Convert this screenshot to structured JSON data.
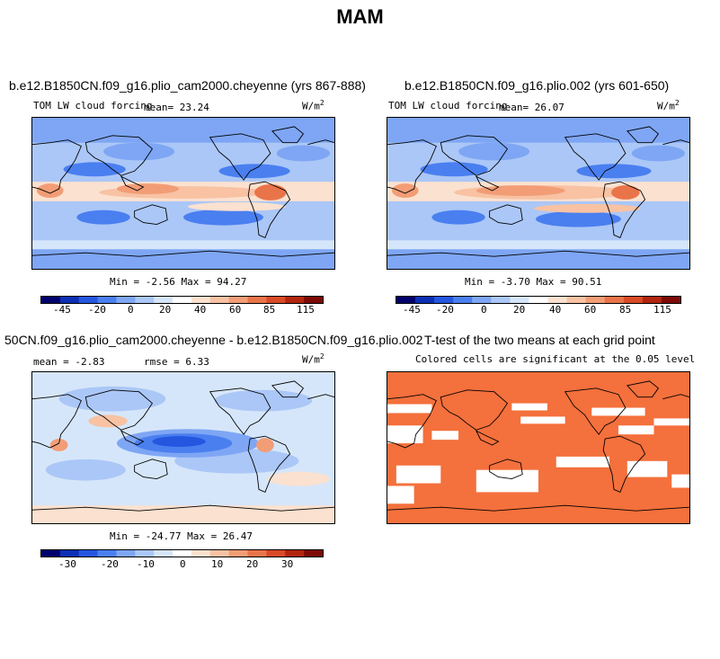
{
  "page_title": "MAM",
  "chart_data": [
    {
      "type": "heatmap",
      "title": "b.e12.B1850CN.f09_g16.plio_cam2000.cheyenne (yrs 867-888)",
      "left_label": "TOM LW cloud forcing",
      "center_label": "mean=  23.24",
      "units": "W/m",
      "units_exp": "2",
      "stats": "Min =  -2.56  Max =  94.27",
      "colorbar_ticks": [
        "-45",
        "-20",
        "0",
        "20",
        "40",
        "60",
        "85",
        "115"
      ],
      "colorbar_colors": [
        "#00006e",
        "#0d2fb4",
        "#2456e0",
        "#4a7ff0",
        "#7ea6f4",
        "#abc7f7",
        "#d6e6fa",
        "#ffffff",
        "#fbe1cf",
        "#f8c2a3",
        "#f29d76",
        "#ea744a",
        "#d94b26",
        "#b2250f",
        "#7d0a06"
      ]
    },
    {
      "type": "heatmap",
      "title": "b.e12.B1850CN.f09_g16.plio.002 (yrs 601-650)",
      "left_label": "TOM LW cloud forcing",
      "center_label": "mean=  26.07",
      "units": "W/m",
      "units_exp": "2",
      "stats": "Min =  -3.70  Max =  90.51",
      "colorbar_ticks": [
        "-45",
        "-20",
        "0",
        "20",
        "40",
        "60",
        "85",
        "115"
      ],
      "colorbar_colors": [
        "#00006e",
        "#0d2fb4",
        "#2456e0",
        "#4a7ff0",
        "#7ea6f4",
        "#abc7f7",
        "#d6e6fa",
        "#ffffff",
        "#fbe1cf",
        "#f8c2a3",
        "#f29d76",
        "#ea744a",
        "#d94b26",
        "#b2250f",
        "#7d0a06"
      ]
    },
    {
      "type": "heatmap",
      "title": "50CN.f09_g16.plio_cam2000.cheyenne - b.e12.B1850CN.f09_g16.plio.002",
      "left_label": "mean =  -2.83",
      "center_label": "rmse =   6.33",
      "units": "W/m",
      "units_exp": "2",
      "stats": "Min = -24.77  Max =  26.47",
      "colorbar_ticks": [
        "-30",
        "-20",
        "-10",
        "0",
        "10",
        "20",
        "30"
      ],
      "colorbar_colors": [
        "#00006e",
        "#0d2fb4",
        "#2456e0",
        "#4a7ff0",
        "#7ea6f4",
        "#abc7f7",
        "#d6e6fa",
        "#ffffff",
        "#fbe1cf",
        "#f8c2a3",
        "#f29d76",
        "#ea744a",
        "#d94b26",
        "#b2250f",
        "#7d0a06"
      ]
    },
    {
      "type": "heatmap",
      "title": "T-test of the two means at each grid point",
      "subtitle": "Colored cells are significant at the 0.05 level",
      "significant_color": "#f4703c"
    }
  ]
}
